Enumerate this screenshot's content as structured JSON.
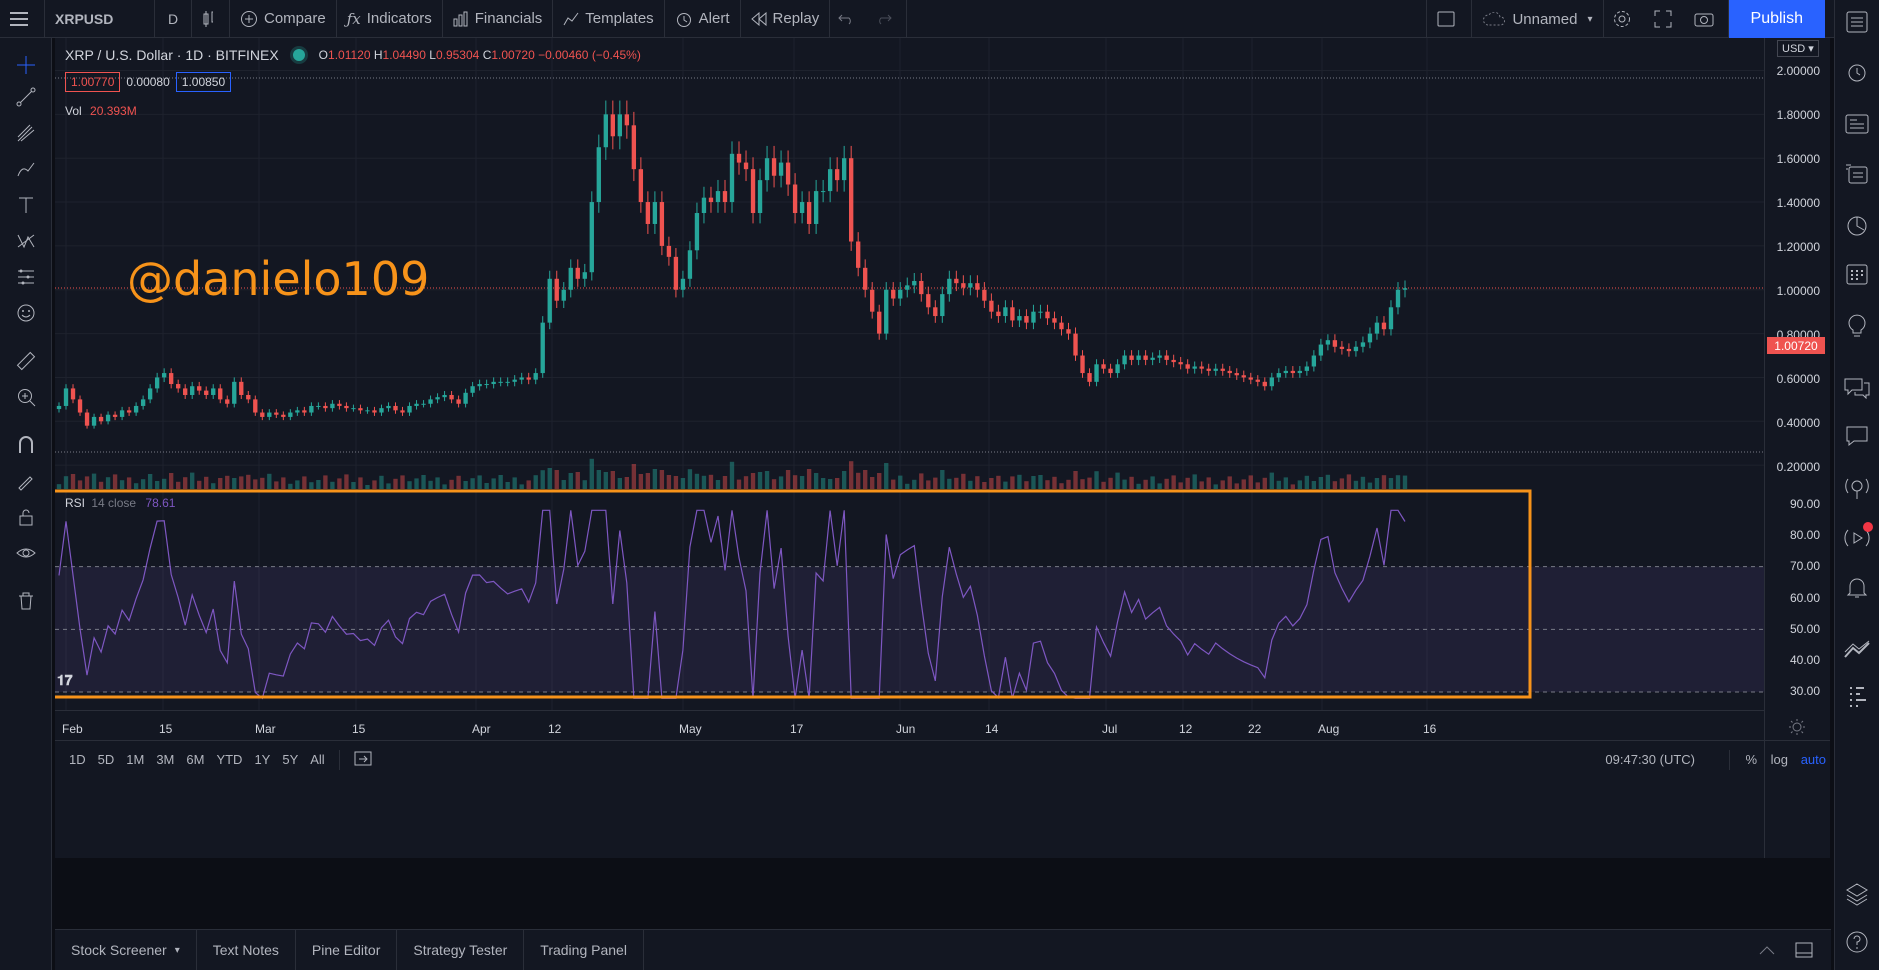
{
  "topbar": {
    "symbol": "XRPUSD",
    "interval": "D",
    "compare": "Compare",
    "indicators": "Indicators",
    "financials": "Financials",
    "templates": "Templates",
    "alert": "Alert",
    "replay": "Replay",
    "layout_name": "Unnamed",
    "publish": "Publish"
  },
  "legend": {
    "title": "XRP / U.S. Dollar · 1D · BITFINEX",
    "o_label": "O",
    "o": "1.01120",
    "h_label": "H",
    "h": "1.04490",
    "l_label": "L",
    "l": "0.95304",
    "c_label": "C",
    "c": "1.00720",
    "change": "−0.00460 (−0.45%)",
    "bid": "1.00770",
    "spread": "0.00080",
    "ask": "1.00850",
    "vol_label": "Vol",
    "vol_value": "20.393M"
  },
  "currency": "USD",
  "watermark": "@danielo109",
  "last_price": "1.00720",
  "price_ticks": [
    "2.00000",
    "1.80000",
    "1.60000",
    "1.40000",
    "1.20000",
    "1.00000",
    "0.80000",
    "0.60000",
    "0.40000",
    "0.20000"
  ],
  "rsi": {
    "label": "RSI",
    "params": "14 close",
    "value": "78.61",
    "ticks": [
      "90.00",
      "80.00",
      "70.00",
      "60.00",
      "50.00",
      "40.00",
      "30.00"
    ]
  },
  "time_ticks": [
    "Feb",
    "15",
    "Mar",
    "15",
    "Apr",
    "12",
    "May",
    "17",
    "Jun",
    "14",
    "Jul",
    "12",
    "22",
    "Aug",
    "16"
  ],
  "ranges": [
    "1D",
    "5D",
    "1M",
    "3M",
    "6M",
    "YTD",
    "1Y",
    "5Y",
    "All"
  ],
  "clock": "09:47:30 (UTC)",
  "scale_opts": {
    "pct": "%",
    "log": "log",
    "auto": "auto"
  },
  "bottom_tabs": [
    "Stock Screener",
    "Text Notes",
    "Pine Editor",
    "Strategy Tester",
    "Trading Panel"
  ],
  "colors": {
    "up": "#26a69a",
    "down": "#ef5350",
    "rsi": "#7e57c2",
    "highlight": "#f7931a",
    "accent": "#2962ff"
  }
}
